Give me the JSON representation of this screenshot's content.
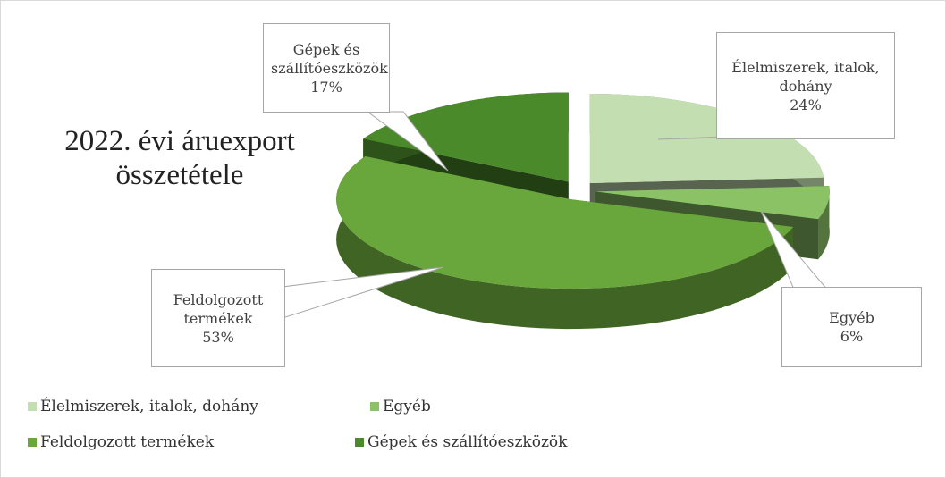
{
  "chart_data": {
    "type": "pie3d",
    "title": "2022. évi áruexport összetétele",
    "categories": [
      "Élelmiszerek, italok, dohány",
      "Egyéb",
      "Feldolgozott termékek",
      "Gépek és szállítóeszközök"
    ],
    "values": [
      24,
      6,
      53,
      17
    ],
    "value_labels": [
      "24%",
      "6%",
      "53%",
      "17%"
    ],
    "colors": [
      "#c3deb0",
      "#8cc266",
      "#69a73c",
      "#4b8a2b"
    ],
    "legend": "bottom"
  }
}
